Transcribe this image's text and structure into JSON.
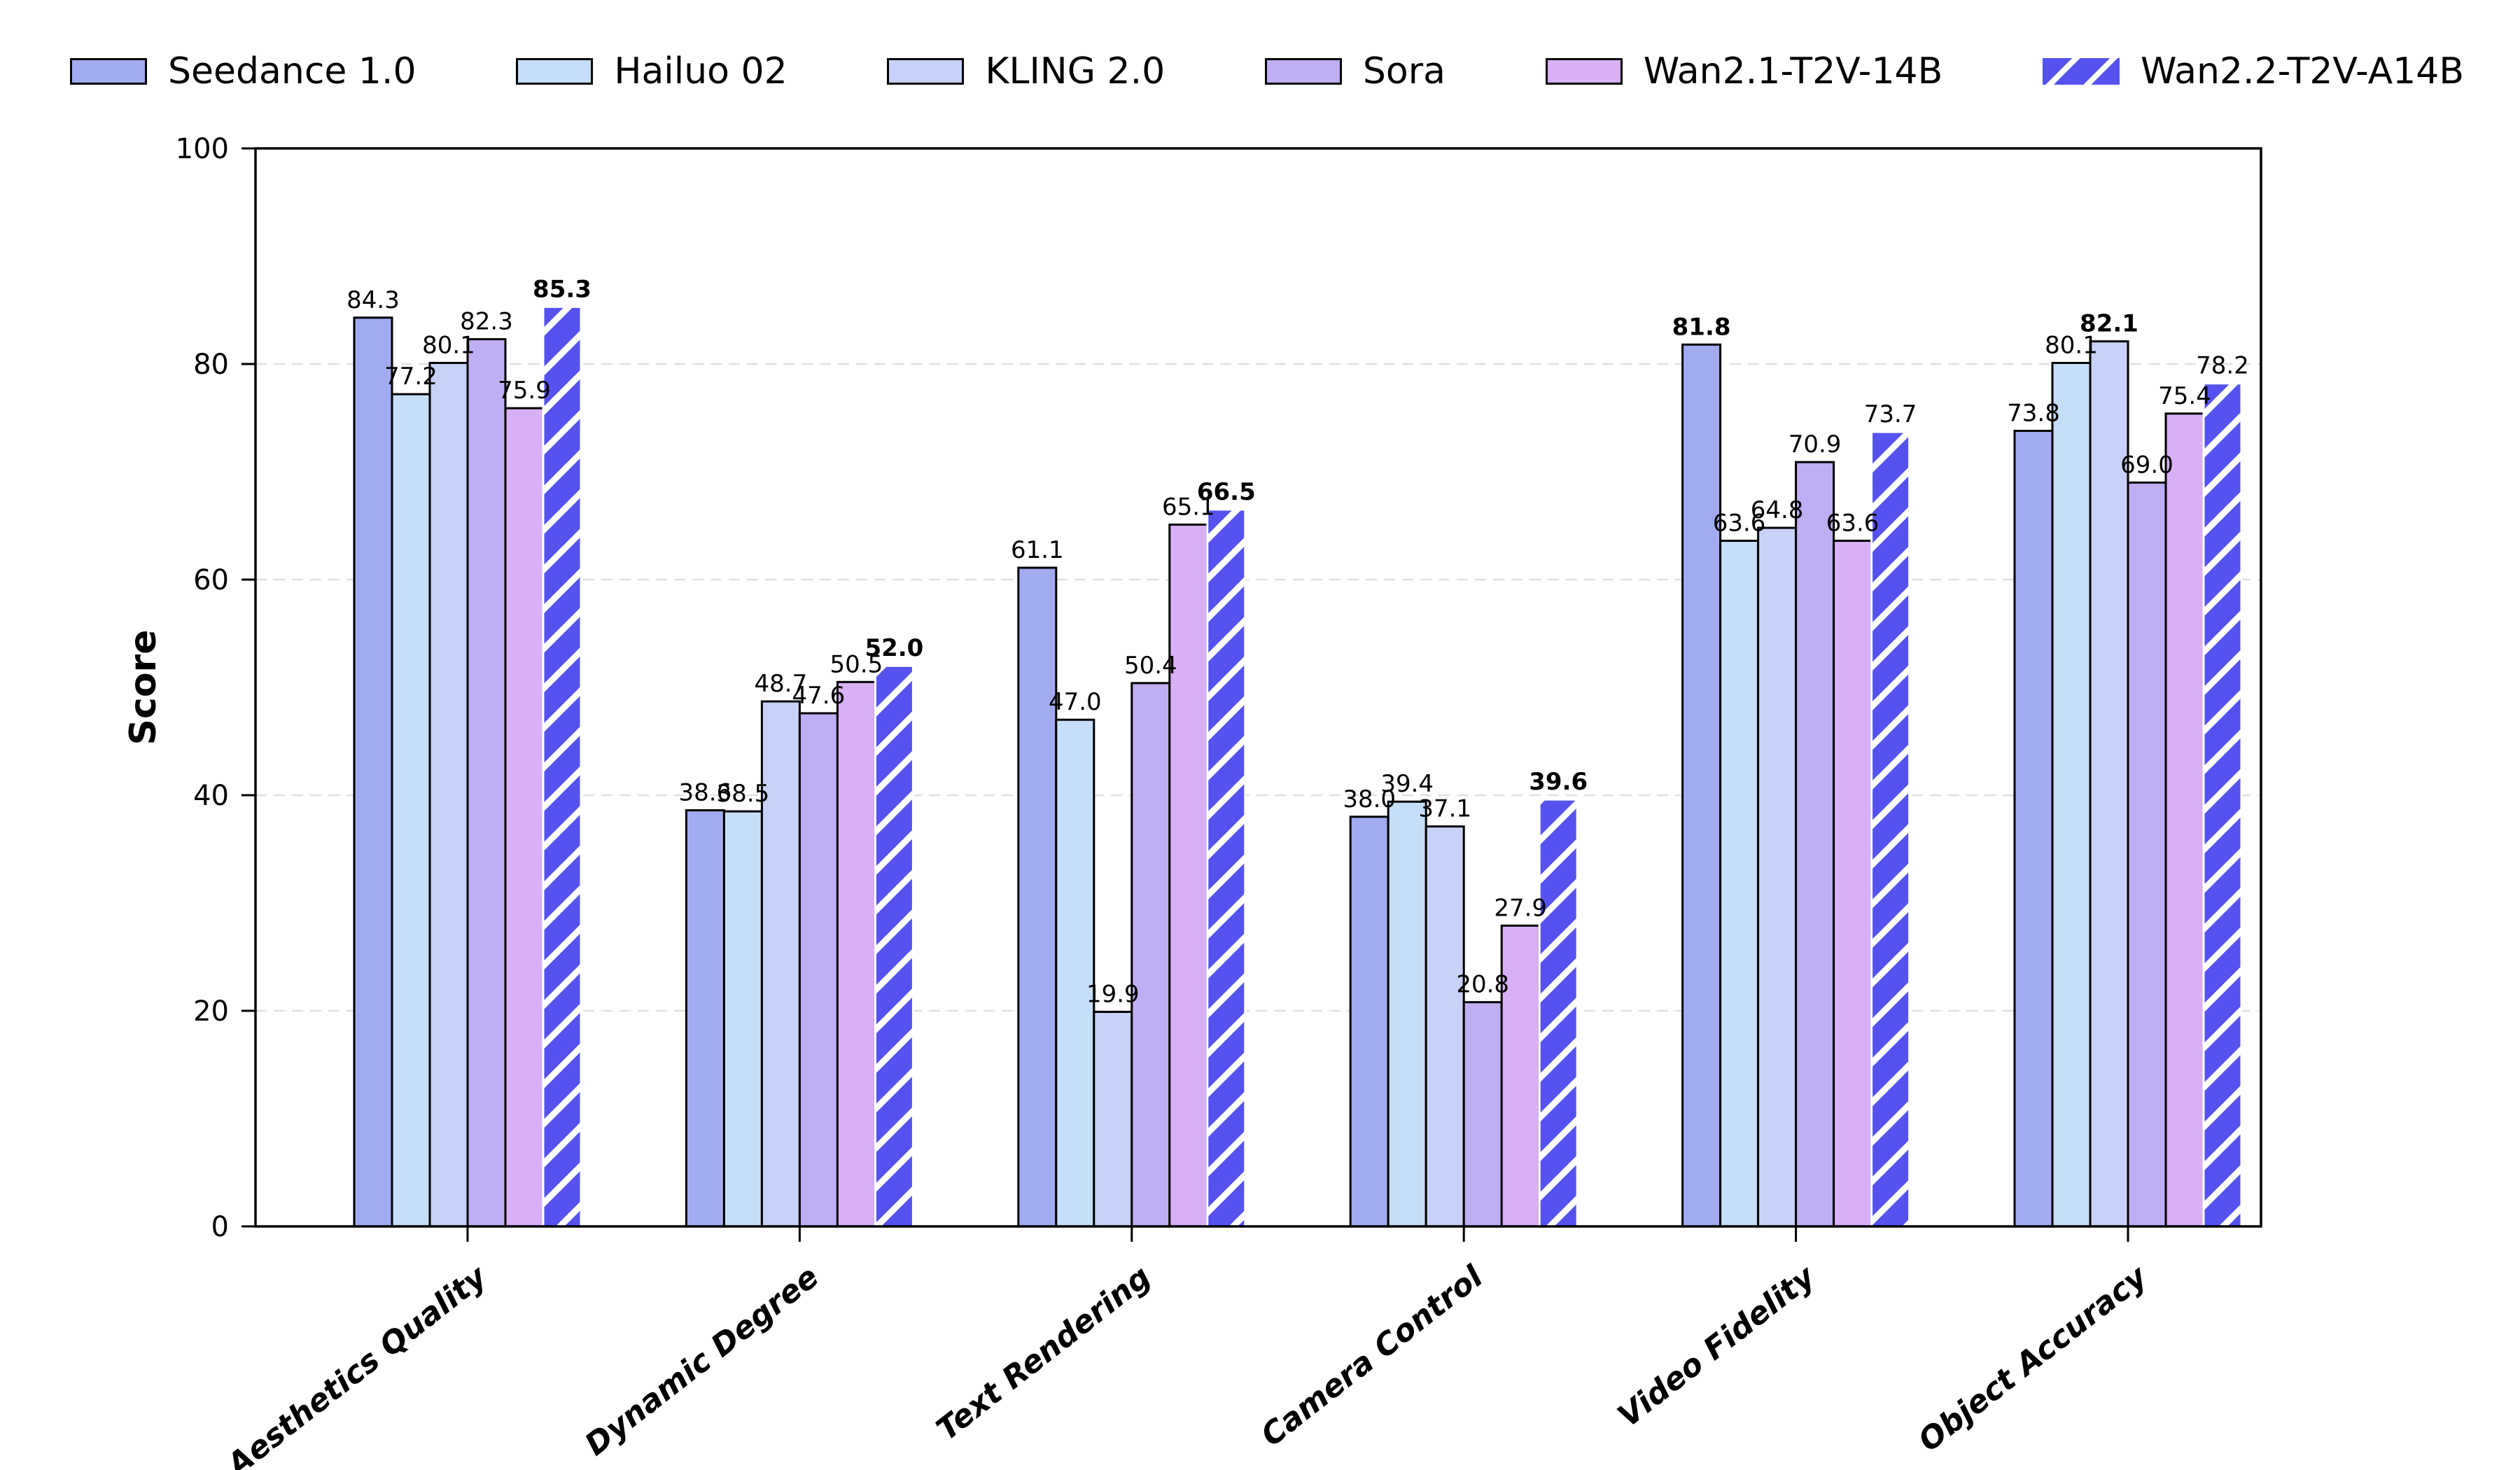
{
  "chart_data": {
    "type": "bar",
    "title": "",
    "ylabel": "Score",
    "xlabel": "",
    "ylim": [
      0,
      100
    ],
    "yticks": [
      0,
      20,
      40,
      60,
      80,
      100
    ],
    "grid": "horizontal-dashed",
    "legend_position": "top",
    "categories": [
      "Aesthetics Quality",
      "Dynamic Degree",
      "Text Rendering",
      "Camera Control",
      "Video Fidelity",
      "Object Accuracy"
    ],
    "series": [
      {
        "name": "Seedance 1.0",
        "color": "#a2abf0",
        "hatch": false,
        "values": [
          84.3,
          38.6,
          61.1,
          38.0,
          81.8,
          73.8
        ]
      },
      {
        "name": "Hailuo 02",
        "color": "#c5def9",
        "hatch": false,
        "values": [
          77.2,
          38.5,
          47.0,
          39.4,
          63.6,
          80.1
        ]
      },
      {
        "name": "KLING 2.0",
        "color": "#c8d2f8",
        "hatch": false,
        "values": [
          80.1,
          48.7,
          19.9,
          37.1,
          64.8,
          82.1
        ]
      },
      {
        "name": "Sora",
        "color": "#bfaef3",
        "hatch": false,
        "values": [
          82.3,
          47.6,
          50.4,
          20.8,
          70.9,
          69.0
        ]
      },
      {
        "name": "Wan2.1-T2V-14B",
        "color": "#d8b0f6",
        "hatch": false,
        "values": [
          75.9,
          50.5,
          65.1,
          27.9,
          63.6,
          75.4
        ]
      },
      {
        "name": "Wan2.2-T2V-A14B",
        "color": "#5552f0",
        "hatch": true,
        "values": [
          85.3,
          52.0,
          66.5,
          39.6,
          73.7,
          78.2
        ]
      }
    ],
    "value_label_rule": "max value in each category is bold",
    "colors": {
      "background": "#ffffff",
      "bar_edge": "#000000",
      "hatch_stripe": "#ffffff",
      "grid": "#e0e0e0",
      "axis": "#000000",
      "text": "#000000"
    }
  }
}
